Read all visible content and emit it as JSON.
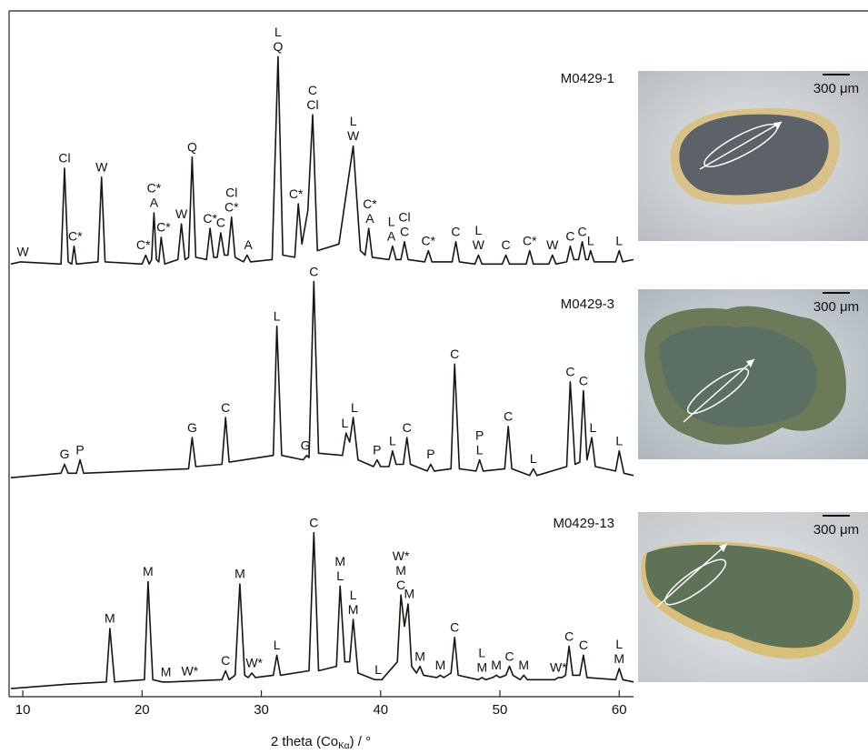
{
  "chart_data": {
    "type": "line",
    "x_label_parts": [
      "2 theta (Co",
      "Kα",
      ") / °"
    ],
    "xlim": [
      8.85,
      61.2
    ],
    "xticks": [
      10,
      20,
      30,
      40,
      50,
      60
    ],
    "ylim": [
      0,
      100
    ],
    "series": [
      {
        "name": "M0429-1",
        "color": "#1a1410",
        "x": [
          9.0,
          9.8,
          13.2,
          13.5,
          13.8,
          14.1,
          14.3,
          14.5,
          16.3,
          16.6,
          16.9,
          20.0,
          20.3,
          20.6,
          20.8,
          21.0,
          21.2,
          21.4,
          21.6,
          21.9,
          23.0,
          23.3,
          23.6,
          23.9,
          24.2,
          24.5,
          25.4,
          25.7,
          26.0,
          26.3,
          26.6,
          26.9,
          27.2,
          27.5,
          27.8,
          28.5,
          28.8,
          29.1,
          30.9,
          31.4,
          31.8,
          32.8,
          33.1,
          33.4,
          33.9,
          34.3,
          34.7,
          36.5,
          37.7,
          38.3,
          38.7,
          39.0,
          39.3,
          40.7,
          41.0,
          41.3,
          41.7,
          42.0,
          42.3,
          43.7,
          44.0,
          44.3,
          46.0,
          46.3,
          46.6,
          47.9,
          48.2,
          48.5,
          50.2,
          50.5,
          50.8,
          52.2,
          52.5,
          52.8,
          54.1,
          54.4,
          54.7,
          55.6,
          55.9,
          56.2,
          56.6,
          56.9,
          57.2,
          57.4,
          57.6,
          57.9,
          59.7,
          60.0,
          60.3,
          61.2
        ],
        "values": [
          6,
          7,
          6,
          49,
          7,
          6,
          14,
          6,
          7,
          45,
          7,
          6,
          10,
          6,
          8,
          29,
          8,
          7,
          18,
          6,
          8,
          24,
          8,
          9,
          54,
          9,
          8,
          22,
          9,
          9,
          20,
          10,
          10,
          27,
          9,
          7,
          10,
          7,
          8,
          99,
          10,
          9,
          33,
          15,
          30,
          73,
          12,
          15,
          59,
          12,
          10,
          22,
          9,
          8,
          14,
          8,
          8,
          16,
          8,
          7,
          12,
          7,
          7,
          16,
          7,
          6,
          10,
          6,
          6,
          10,
          6,
          6,
          12,
          6,
          6,
          10,
          6,
          7,
          14,
          8,
          8,
          16,
          8,
          8,
          12,
          7,
          7,
          12,
          7,
          8
        ],
        "labels": [
          {
            "x": 10,
            "text": [
              "W"
            ]
          },
          {
            "x": 13.5,
            "text": [
              "Cl"
            ]
          },
          {
            "x": 14.4,
            "text": [
              "C*"
            ]
          },
          {
            "x": 16.6,
            "text": [
              "W"
            ]
          },
          {
            "x": 20.1,
            "text": [
              "C*"
            ]
          },
          {
            "x": 21.0,
            "text": [
              "C*",
              "A"
            ]
          },
          {
            "x": 21.8,
            "text": [
              "C*"
            ]
          },
          {
            "x": 23.3,
            "text": [
              "W"
            ]
          },
          {
            "x": 24.2,
            "text": [
              "Q"
            ]
          },
          {
            "x": 25.7,
            "text": [
              "C*"
            ]
          },
          {
            "x": 26.6,
            "text": [
              "C"
            ]
          },
          {
            "x": 27.5,
            "text": [
              "Cl",
              "C*"
            ]
          },
          {
            "x": 28.9,
            "text": [
              "A"
            ]
          },
          {
            "x": 31.4,
            "text": [
              "L",
              "Q"
            ]
          },
          {
            "x": 32.9,
            "text": [
              "C*"
            ]
          },
          {
            "x": 34.3,
            "text": [
              "C",
              "Cl"
            ]
          },
          {
            "x": 37.7,
            "text": [
              "L",
              "W"
            ]
          },
          {
            "x": 39.1,
            "text": [
              "C*",
              "A"
            ]
          },
          {
            "x": 40.9,
            "text": [
              "L",
              "A"
            ]
          },
          {
            "x": 42.0,
            "text": [
              "Cl",
              "C"
            ]
          },
          {
            "x": 44.0,
            "text": [
              "C*"
            ]
          },
          {
            "x": 46.3,
            "text": [
              "C"
            ]
          },
          {
            "x": 48.2,
            "text": [
              "L",
              "W"
            ]
          },
          {
            "x": 50.5,
            "text": [
              "C"
            ]
          },
          {
            "x": 52.5,
            "text": [
              "C*"
            ]
          },
          {
            "x": 54.4,
            "text": [
              "W"
            ]
          },
          {
            "x": 55.9,
            "text": [
              "C"
            ]
          },
          {
            "x": 56.9,
            "text": [
              "C"
            ]
          },
          {
            "x": 57.6,
            "text": [
              "L"
            ]
          },
          {
            "x": 60.0,
            "text": [
              "L"
            ]
          }
        ]
      },
      {
        "name": "M0429-3",
        "color": "#1a1410",
        "x": [
          9.0,
          13.2,
          13.5,
          13.8,
          14.5,
          14.8,
          15.1,
          23.9,
          24.2,
          24.5,
          26.7,
          27.0,
          27.3,
          31.0,
          31.3,
          31.7,
          33.5,
          33.8,
          34.0,
          34.4,
          34.8,
          36.8,
          37.1,
          37.4,
          37.7,
          38.1,
          39.4,
          39.7,
          40.0,
          40.7,
          41.0,
          41.3,
          41.9,
          42.2,
          42.5,
          43.9,
          44.2,
          44.5,
          45.9,
          46.2,
          46.6,
          48.0,
          48.3,
          48.6,
          50.4,
          50.7,
          51.0,
          52.5,
          52.8,
          53.1,
          55.6,
          55.9,
          56.3,
          56.7,
          57.0,
          57.3,
          57.7,
          58.0,
          59.7,
          60.0,
          60.4,
          61.2
        ],
        "values": [
          4,
          6,
          10,
          6,
          6,
          12,
          6,
          8,
          22,
          9,
          10,
          31,
          11,
          14,
          72,
          14,
          12,
          14,
          13,
          92,
          15,
          14,
          24,
          20,
          31,
          12,
          9,
          12,
          9,
          9,
          16,
          10,
          10,
          22,
          10,
          7,
          10,
          7,
          8,
          55,
          8,
          7,
          12,
          7,
          8,
          27,
          8,
          5,
          8,
          5,
          9,
          47,
          10,
          11,
          43,
          12,
          22,
          9,
          7,
          16,
          6,
          5
        ],
        "labels": [
          {
            "x": 13.5,
            "text": [
              "G"
            ]
          },
          {
            "x": 14.8,
            "text": [
              "P"
            ]
          },
          {
            "x": 24.2,
            "text": [
              "G"
            ]
          },
          {
            "x": 27.0,
            "text": [
              "C"
            ]
          },
          {
            "x": 31.3,
            "text": [
              "L"
            ]
          },
          {
            "x": 33.7,
            "text": [
              "G"
            ]
          },
          {
            "x": 34.4,
            "text": [
              "C"
            ]
          },
          {
            "x": 37.0,
            "text": [
              "L"
            ]
          },
          {
            "x": 37.8,
            "text": [
              "L"
            ]
          },
          {
            "x": 39.7,
            "text": [
              "P"
            ]
          },
          {
            "x": 41.0,
            "text": [
              "L"
            ]
          },
          {
            "x": 42.2,
            "text": [
              "C"
            ]
          },
          {
            "x": 44.2,
            "text": [
              "P"
            ]
          },
          {
            "x": 46.2,
            "text": [
              "C"
            ]
          },
          {
            "x": 48.3,
            "text": [
              "P",
              "L"
            ]
          },
          {
            "x": 50.7,
            "text": [
              "C"
            ]
          },
          {
            "x": 52.8,
            "text": [
              "L"
            ]
          },
          {
            "x": 55.9,
            "text": [
              "C"
            ]
          },
          {
            "x": 57.0,
            "text": [
              "C"
            ]
          },
          {
            "x": 57.8,
            "text": [
              "L"
            ]
          },
          {
            "x": 60.0,
            "text": [
              "L"
            ]
          }
        ]
      },
      {
        "name": "M0429-13",
        "color": "#1a1410",
        "x": [
          9.0,
          13.8,
          17.0,
          17.3,
          17.7,
          20.2,
          20.5,
          20.9,
          21.7,
          22.0,
          22.3,
          26.7,
          27.0,
          27.3,
          27.8,
          28.2,
          28.6,
          28.9,
          29.2,
          29.5,
          31.0,
          31.3,
          31.6,
          34.0,
          34.4,
          34.8,
          36.3,
          36.6,
          37.0,
          37.4,
          37.7,
          38.1,
          39.5,
          39.8,
          40.1,
          41.4,
          41.7,
          42.0,
          42.3,
          42.6,
          43.0,
          43.3,
          43.6,
          44.7,
          45.0,
          45.3,
          45.9,
          46.2,
          46.5,
          48.2,
          48.5,
          48.8,
          49.4,
          49.7,
          50.0,
          50.5,
          50.8,
          51.1,
          51.7,
          52.0,
          52.3,
          54.6,
          54.9,
          55.2,
          55.5,
          55.8,
          56.1,
          56.7,
          57.0,
          57.3,
          59.7,
          60.0,
          60.3,
          61.2
        ],
        "values": [
          2,
          4,
          5,
          29,
          5,
          6,
          50,
          6,
          5,
          5,
          5,
          6,
          10,
          6,
          8,
          49,
          8,
          7,
          9,
          7,
          8,
          17,
          8,
          10,
          72,
          10,
          12,
          48,
          14,
          14,
          33,
          9,
          6,
          6,
          6,
          14,
          44,
          30,
          40,
          12,
          9,
          12,
          8,
          7,
          8,
          7,
          9,
          25,
          8,
          6,
          7,
          6,
          7,
          8,
          7,
          8,
          12,
          8,
          6,
          8,
          6,
          6,
          7,
          7,
          8,
          21,
          8,
          8,
          17,
          7,
          6,
          11,
          6,
          5
        ],
        "labels": [
          {
            "x": 17.3,
            "text": [
              "M"
            ]
          },
          {
            "x": 20.5,
            "text": [
              "M"
            ]
          },
          {
            "x": 22.0,
            "text": [
              "M"
            ]
          },
          {
            "x": 24.0,
            "text": [
              "W*"
            ]
          },
          {
            "x": 27.0,
            "text": [
              "C"
            ]
          },
          {
            "x": 28.2,
            "text": [
              "M"
            ]
          },
          {
            "x": 29.4,
            "text": [
              "W*"
            ]
          },
          {
            "x": 31.3,
            "text": [
              "L"
            ]
          },
          {
            "x": 34.4,
            "text": [
              "C"
            ]
          },
          {
            "x": 36.6,
            "text": [
              "M",
              "L"
            ]
          },
          {
            "x": 37.7,
            "text": [
              "L",
              "M"
            ]
          },
          {
            "x": 39.8,
            "text": [
              "L"
            ]
          },
          {
            "x": 41.7,
            "text": [
              "W*",
              "M",
              "C"
            ]
          },
          {
            "x": 42.4,
            "text": [
              "M"
            ]
          },
          {
            "x": 43.3,
            "text": [
              "M"
            ]
          },
          {
            "x": 45.0,
            "text": [
              "M"
            ]
          },
          {
            "x": 46.2,
            "text": [
              "C"
            ]
          },
          {
            "x": 48.5,
            "text": [
              "L",
              "M"
            ]
          },
          {
            "x": 49.7,
            "text": [
              "M"
            ]
          },
          {
            "x": 50.8,
            "text": [
              "C"
            ]
          },
          {
            "x": 52.0,
            "text": [
              "M"
            ]
          },
          {
            "x": 54.9,
            "text": [
              "W*"
            ]
          },
          {
            "x": 55.8,
            "text": [
              "C"
            ]
          },
          {
            "x": 57.0,
            "text": [
              "C"
            ]
          },
          {
            "x": 60.0,
            "text": [
              "L",
              "M"
            ]
          }
        ]
      }
    ]
  },
  "photo_scale_label": "300 μm"
}
